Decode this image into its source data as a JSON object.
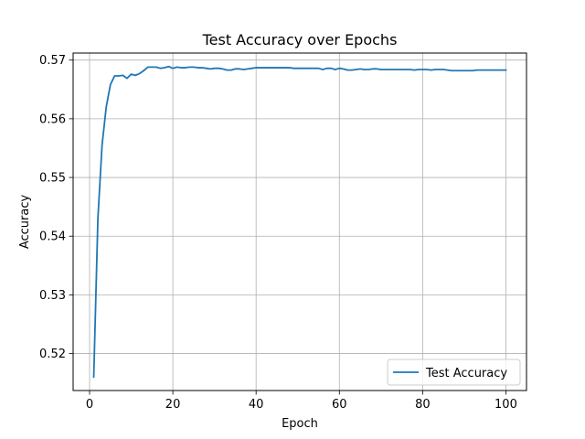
{
  "chart_data": {
    "type": "line",
    "title": "Test Accuracy over Epochs",
    "xlabel": "Epoch",
    "ylabel": "Accuracy",
    "xlim": [
      -3.95,
      104.95
    ],
    "ylim": [
      0.5137,
      0.5712
    ],
    "xticks": [
      0,
      20,
      40,
      60,
      80,
      100
    ],
    "yticks": [
      0.52,
      0.53,
      0.54,
      0.55,
      0.56,
      0.57
    ],
    "grid": true,
    "legend_position": "lower-right",
    "series": [
      {
        "name": "Test Accuracy",
        "color": "#1f77b4",
        "x": [
          1,
          2,
          3,
          4,
          5,
          6,
          7,
          8,
          9,
          10,
          11,
          12,
          13,
          14,
          15,
          16,
          17,
          18,
          19,
          20,
          21,
          22,
          23,
          24,
          25,
          26,
          27,
          28,
          29,
          30,
          31,
          32,
          33,
          34,
          35,
          36,
          37,
          38,
          39,
          40,
          41,
          42,
          43,
          44,
          45,
          46,
          47,
          48,
          49,
          50,
          51,
          52,
          53,
          54,
          55,
          56,
          57,
          58,
          59,
          60,
          61,
          62,
          63,
          64,
          65,
          66,
          67,
          68,
          69,
          70,
          71,
          72,
          73,
          74,
          75,
          76,
          77,
          78,
          79,
          80,
          81,
          82,
          83,
          84,
          85,
          86,
          87,
          88,
          89,
          90,
          91,
          92,
          93,
          94,
          95,
          96,
          97,
          98,
          99,
          100
        ],
        "values": [
          0.516,
          0.543,
          0.5555,
          0.562,
          0.5658,
          0.5673,
          0.5673,
          0.5674,
          0.5669,
          0.5676,
          0.5674,
          0.5677,
          0.5682,
          0.5688,
          0.5688,
          0.5688,
          0.5686,
          0.5687,
          0.5689,
          0.5686,
          0.5688,
          0.5687,
          0.5687,
          0.5688,
          0.5688,
          0.5687,
          0.5687,
          0.5686,
          0.5685,
          0.5686,
          0.5686,
          0.5685,
          0.5683,
          0.5683,
          0.5685,
          0.5685,
          0.5684,
          0.5685,
          0.5686,
          0.5687,
          0.5687,
          0.5687,
          0.5687,
          0.5687,
          0.5687,
          0.5687,
          0.5687,
          0.5687,
          0.5686,
          0.5686,
          0.5686,
          0.5686,
          0.5686,
          0.5686,
          0.5686,
          0.5684,
          0.5686,
          0.5686,
          0.5684,
          0.5686,
          0.5685,
          0.5683,
          0.5683,
          0.5684,
          0.5685,
          0.5684,
          0.5684,
          0.5685,
          0.5685,
          0.5684,
          0.5684,
          0.5684,
          0.5684,
          0.5684,
          0.5684,
          0.5684,
          0.5684,
          0.5683,
          0.5684,
          0.5684,
          0.5684,
          0.5683,
          0.5684,
          0.5684,
          0.5684,
          0.5683,
          0.5682,
          0.5682,
          0.5682,
          0.5682,
          0.5682,
          0.5682,
          0.5683,
          0.5683,
          0.5683,
          0.5683,
          0.5683,
          0.5683,
          0.5683,
          0.5683
        ]
      }
    ]
  }
}
